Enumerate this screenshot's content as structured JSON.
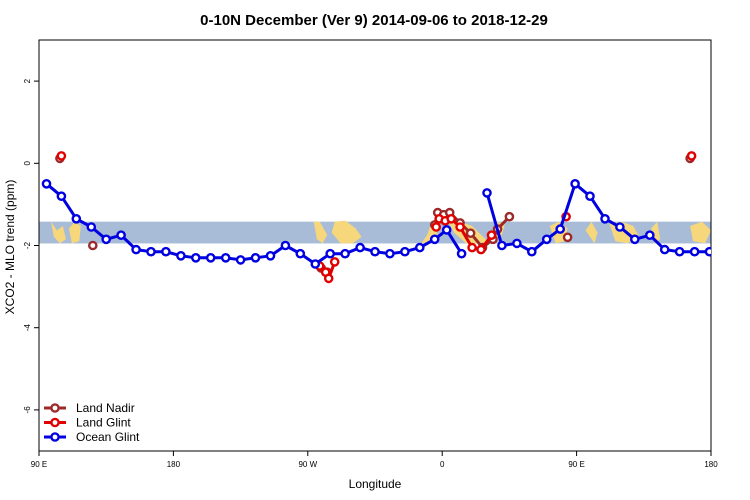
{
  "chart_data": {
    "type": "line",
    "title": "0-10N December (Ver 9)   2014-09-06 to 2018-12-29",
    "xlabel": "Longitude",
    "ylabel": "XCO2 - MLO trend (ppm)",
    "xlim": [
      90,
      540
    ],
    "ylim": [
      -7,
      3
    ],
    "x_ticks": [
      {
        "value": 90,
        "label": "90 E"
      },
      {
        "value": 180,
        "label": "180"
      },
      {
        "value": 270,
        "label": "90 W"
      },
      {
        "value": 360,
        "label": "0"
      },
      {
        "value": 450,
        "label": "90 E"
      },
      {
        "value": 540,
        "label": "180"
      }
    ],
    "y_ticks": [
      {
        "value": 2,
        "label": "2"
      },
      {
        "value": 0,
        "label": "0"
      },
      {
        "value": -2,
        "label": "-2"
      },
      {
        "value": -4,
        "label": "-4"
      },
      {
        "value": -6,
        "label": "-6"
      }
    ],
    "background_band": {
      "y_range": [
        -1.95,
        -1.42
      ],
      "color": "#a8bcd8",
      "land_color": "#f7d77c"
    },
    "grid": false,
    "legend_position": "bottom-left",
    "series": [
      {
        "name": "Land Nadir",
        "color": "#9c2a2a",
        "segments": [
          [
            [
              104,
              0.12
            ]
          ],
          [
            [
              126,
              -2.0
            ]
          ],
          [
            [
              279,
              -2.55
            ],
            [
              283,
              -2.65
            ]
          ],
          [
            [
              355,
              -1.5
            ],
            [
              357,
              -1.2
            ],
            [
              361,
              -1.25
            ],
            [
              365,
              -1.2
            ],
            [
              372,
              -1.45
            ],
            [
              379,
              -1.7
            ],
            [
              387,
              -2.05
            ],
            [
              394,
              -1.85
            ],
            [
              397,
              -1.6
            ],
            [
              405,
              -1.3
            ]
          ],
          [
            [
              444,
              -1.8
            ]
          ],
          [
            [
              526,
              0.12
            ]
          ],
          [
            [
              547,
              -2.0
            ]
          ]
        ]
      },
      {
        "name": "Land Glint",
        "color": "#e00000",
        "segments": [
          [
            [
              105,
              0.18
            ]
          ],
          [
            [
              278,
              -2.5
            ],
            [
              282,
              -2.65
            ],
            [
              284,
              -2.8
            ],
            [
              288,
              -2.4
            ]
          ],
          [
            [
              356,
              -1.55
            ],
            [
              358,
              -1.35
            ],
            [
              362,
              -1.4
            ],
            [
              366,
              -1.35
            ],
            [
              372,
              -1.55
            ],
            [
              380,
              -2.05
            ],
            [
              386,
              -2.1
            ],
            [
              393,
              -1.75
            ]
          ],
          [
            [
              443,
              -1.3
            ]
          ],
          [
            [
              527,
              0.18
            ]
          ]
        ]
      },
      {
        "name": "Ocean Glint",
        "color": "#0000e0",
        "segments": [
          [
            [
              95,
              -0.5
            ],
            [
              105,
              -0.8
            ],
            [
              115,
              -1.35
            ],
            [
              125,
              -1.55
            ],
            [
              135,
              -1.85
            ],
            [
              145,
              -1.75
            ],
            [
              155,
              -2.1
            ],
            [
              165,
              -2.15
            ],
            [
              175,
              -2.15
            ],
            [
              185,
              -2.25
            ],
            [
              195,
              -2.3
            ],
            [
              205,
              -2.3
            ],
            [
              215,
              -2.3
            ],
            [
              225,
              -2.35
            ],
            [
              235,
              -2.3
            ],
            [
              245,
              -2.25
            ],
            [
              255,
              -2.0
            ],
            [
              265,
              -2.2
            ],
            [
              275,
              -2.45
            ],
            [
              285,
              -2.2
            ],
            [
              295,
              -2.2
            ],
            [
              305,
              -2.05
            ],
            [
              315,
              -2.15
            ],
            [
              325,
              -2.2
            ],
            [
              335,
              -2.15
            ],
            [
              345,
              -2.05
            ],
            [
              355,
              -1.85
            ],
            [
              363,
              -1.62
            ],
            [
              373,
              -2.2
            ]
          ],
          [
            [
              390,
              -0.72
            ],
            [
              400,
              -2.0
            ],
            [
              410,
              -1.95
            ],
            [
              420,
              -2.15
            ],
            [
              430,
              -1.85
            ],
            [
              439,
              -1.6
            ],
            [
              449,
              -0.5
            ],
            [
              459,
              -0.8
            ],
            [
              469,
              -1.35
            ],
            [
              479,
              -1.55
            ],
            [
              489,
              -1.85
            ],
            [
              499,
              -1.75
            ],
            [
              509,
              -2.1
            ],
            [
              519,
              -2.15
            ],
            [
              529,
              -2.15
            ],
            [
              539,
              -2.15
            ]
          ]
        ]
      }
    ]
  }
}
